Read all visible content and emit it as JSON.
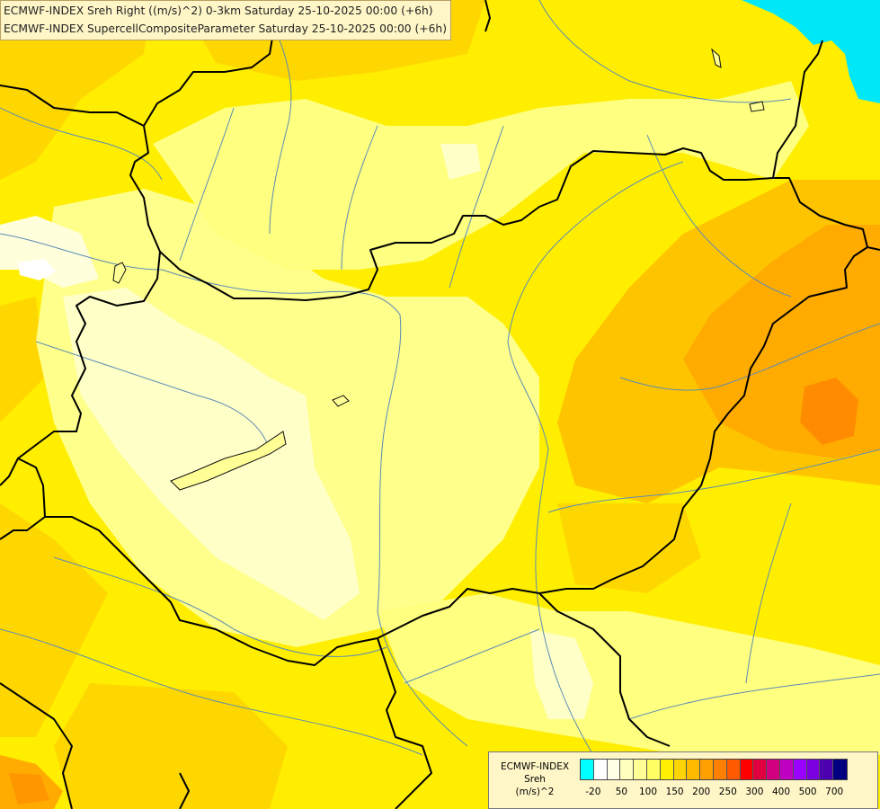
{
  "header": {
    "line1": "ECMWF-INDEX Sreh Right ((m/s)^2) 0-3km Saturday 25-10-2025 00:00 (+6h)",
    "line2": "ECMWF-INDEX SupercellCompositeParameter Saturday 25-10-2025 00:00 (+6h)"
  },
  "legend": {
    "line1": "ECMWF-INDEX",
    "line2": "Sreh",
    "line3": "(m/s)^2",
    "colors": [
      "#00ffff",
      "#ffffff",
      "#ffffe6",
      "#ffffbe",
      "#ffff96",
      "#ffff64",
      "#ffef00",
      "#ffd400",
      "#ffbb00",
      "#ff9f00",
      "#ff7f00",
      "#ff5a00",
      "#ff0000",
      "#e00040",
      "#d0007f",
      "#c000c0",
      "#9900ff",
      "#7a00e0",
      "#4c00b0",
      "#000080"
    ],
    "ticks": [
      "-20",
      "50",
      "100",
      "150",
      "200",
      "250",
      "300",
      "400",
      "500",
      "700"
    ]
  },
  "map_colors": {
    "very_light": "#ffffc8",
    "light": "#ffff96",
    "yellow": "#ffef00",
    "gold": "#ffd700",
    "orange": "#ffbb00",
    "dark_orange": "#ff9a00",
    "sea": "#00e8f8"
  }
}
